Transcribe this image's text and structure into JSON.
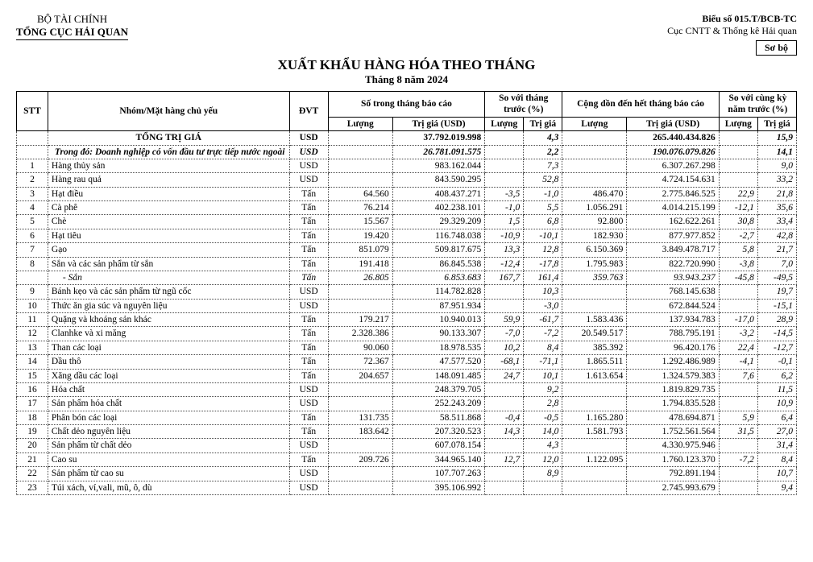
{
  "header": {
    "ministry": "BỘ TÀI CHÍNH",
    "agency": "TỔNG CỤC HẢI QUAN",
    "form_no": "Biểu số 015.T/BCB-TC",
    "dept": "Cục CNTT & Thống kê Hải quan",
    "sobo": "Sơ bộ"
  },
  "title": {
    "main": "XUẤT KHẨU HÀNG HÓA THEO THÁNG",
    "sub": "Tháng 8 năm 2024"
  },
  "columns": {
    "stt": "STT",
    "name": "Nhóm/Mặt hàng chủ yếu",
    "dvt": "ĐVT",
    "this_month": "Số trong tháng báo cáo",
    "vs_prev": "So với tháng trước (%)",
    "cum": "Cộng dồn đến hết tháng báo cáo",
    "vs_yoy": "So với cùng kỳ năm trước (%)",
    "qty": "Lượng",
    "val": "Trị giá (USD)",
    "valshort": "Trị giá"
  },
  "rows": [
    {
      "type": "total",
      "stt": "",
      "name": "TỔNG TRỊ GIÁ",
      "dvt": "USD",
      "q1": "",
      "v1": "37.792.019.998",
      "p1": "",
      "p2": "4,3",
      "q2": "",
      "v2": "265.440.434.826",
      "p3": "",
      "p4": "15,9"
    },
    {
      "type": "fdi",
      "stt": "",
      "name": "Trong đó: Doanh nghiệp có vốn đầu tư trực tiếp nước ngoài",
      "dvt": "USD",
      "q1": "",
      "v1": "26.781.091.575",
      "p1": "",
      "p2": "2,2",
      "q2": "",
      "v2": "190.076.079.826",
      "p3": "",
      "p4": "14,1"
    },
    {
      "type": "row",
      "stt": "1",
      "name": "Hàng thủy sản",
      "dvt": "USD",
      "q1": "",
      "v1": "983.162.044",
      "p1": "",
      "p2": "7,3",
      "q2": "",
      "v2": "6.307.267.298",
      "p3": "",
      "p4": "9,0"
    },
    {
      "type": "row",
      "stt": "2",
      "name": "Hàng rau quả",
      "dvt": "USD",
      "q1": "",
      "v1": "843.590.295",
      "p1": "",
      "p2": "52,8",
      "q2": "",
      "v2": "4.724.154.631",
      "p3": "",
      "p4": "33,2"
    },
    {
      "type": "row",
      "stt": "3",
      "name": "Hạt điều",
      "dvt": "Tấn",
      "q1": "64.560",
      "v1": "408.437.271",
      "p1": "-3,5",
      "p2": "-1,0",
      "q2": "486.470",
      "v2": "2.775.846.525",
      "p3": "22,9",
      "p4": "21,8"
    },
    {
      "type": "row",
      "stt": "4",
      "name": "Cà phê",
      "dvt": "Tấn",
      "q1": "76.214",
      "v1": "402.238.101",
      "p1": "-1,0",
      "p2": "5,5",
      "q2": "1.056.291",
      "v2": "4.014.215.199",
      "p3": "-12,1",
      "p4": "35,6"
    },
    {
      "type": "row",
      "stt": "5",
      "name": "Chè",
      "dvt": "Tấn",
      "q1": "15.567",
      "v1": "29.329.209",
      "p1": "1,5",
      "p2": "6,8",
      "q2": "92.800",
      "v2": "162.622.261",
      "p3": "30,8",
      "p4": "33,4"
    },
    {
      "type": "row",
      "stt": "6",
      "name": "Hạt tiêu",
      "dvt": "Tấn",
      "q1": "19.420",
      "v1": "116.748.038",
      "p1": "-10,9",
      "p2": "-10,1",
      "q2": "182.930",
      "v2": "877.977.852",
      "p3": "-2,7",
      "p4": "42,8"
    },
    {
      "type": "row",
      "stt": "7",
      "name": "Gạo",
      "dvt": "Tấn",
      "q1": "851.079",
      "v1": "509.817.675",
      "p1": "13,3",
      "p2": "12,8",
      "q2": "6.150.369",
      "v2": "3.849.478.717",
      "p3": "5,8",
      "p4": "21,7"
    },
    {
      "type": "row",
      "stt": "8",
      "name": "Sắn và các sản phẩm từ sắn",
      "dvt": "Tấn",
      "q1": "191.418",
      "v1": "86.845.538",
      "p1": "-12,4",
      "p2": "-17,8",
      "q2": "1.795.983",
      "v2": "822.720.990",
      "p3": "-3,8",
      "p4": "7,0"
    },
    {
      "type": "subitem",
      "stt": "",
      "name": "- Sắn",
      "dvt": "Tấn",
      "q1": "26.805",
      "v1": "6.853.683",
      "p1": "167,7",
      "p2": "161,4",
      "q2": "359.763",
      "v2": "93.943.237",
      "p3": "-45,8",
      "p4": "-49,5"
    },
    {
      "type": "row",
      "stt": "9",
      "name": "Bánh kẹo và các sản phẩm từ ngũ cốc",
      "dvt": "USD",
      "q1": "",
      "v1": "114.782.828",
      "p1": "",
      "p2": "10,3",
      "q2": "",
      "v2": "768.145.638",
      "p3": "",
      "p4": "19,7"
    },
    {
      "type": "row",
      "stt": "10",
      "name": "Thức ăn gia súc và nguyên liệu",
      "dvt": "USD",
      "q1": "",
      "v1": "87.951.934",
      "p1": "",
      "p2": "-3,0",
      "q2": "",
      "v2": "672.844.524",
      "p3": "",
      "p4": "-15,1"
    },
    {
      "type": "row",
      "stt": "11",
      "name": "Quặng và khoáng sản khác",
      "dvt": "Tấn",
      "q1": "179.217",
      "v1": "10.940.013",
      "p1": "59,9",
      "p2": "-61,7",
      "q2": "1.583.436",
      "v2": "137.934.783",
      "p3": "-17,0",
      "p4": "28,9"
    },
    {
      "type": "row",
      "stt": "12",
      "name": "Clanhke và xi măng",
      "dvt": "Tấn",
      "q1": "2.328.386",
      "v1": "90.133.307",
      "p1": "-7,0",
      "p2": "-7,2",
      "q2": "20.549.517",
      "v2": "788.795.191",
      "p3": "-3,2",
      "p4": "-14,5"
    },
    {
      "type": "row",
      "stt": "13",
      "name": "Than các loại",
      "dvt": "Tấn",
      "q1": "90.060",
      "v1": "18.978.535",
      "p1": "10,2",
      "p2": "8,4",
      "q2": "385.392",
      "v2": "96.420.176",
      "p3": "22,4",
      "p4": "-12,7"
    },
    {
      "type": "row",
      "stt": "14",
      "name": "Dầu thô",
      "dvt": "Tấn",
      "q1": "72.367",
      "v1": "47.577.520",
      "p1": "-68,1",
      "p2": "-71,1",
      "q2": "1.865.511",
      "v2": "1.292.486.989",
      "p3": "-4,1",
      "p4": "-0,1"
    },
    {
      "type": "row",
      "stt": "15",
      "name": "Xăng dầu các loại",
      "dvt": "Tấn",
      "q1": "204.657",
      "v1": "148.091.485",
      "p1": "24,7",
      "p2": "10,1",
      "q2": "1.613.654",
      "v2": "1.324.579.383",
      "p3": "7,6",
      "p4": "6,2"
    },
    {
      "type": "row",
      "stt": "16",
      "name": "Hóa chất",
      "dvt": "USD",
      "q1": "",
      "v1": "248.379.705",
      "p1": "",
      "p2": "9,2",
      "q2": "",
      "v2": "1.819.829.735",
      "p3": "",
      "p4": "11,5"
    },
    {
      "type": "row",
      "stt": "17",
      "name": "Sản phẩm hóa chất",
      "dvt": "USD",
      "q1": "",
      "v1": "252.243.209",
      "p1": "",
      "p2": "2,8",
      "q2": "",
      "v2": "1.794.835.528",
      "p3": "",
      "p4": "10,9"
    },
    {
      "type": "row",
      "stt": "18",
      "name": "Phân bón các loại",
      "dvt": "Tấn",
      "q1": "131.735",
      "v1": "58.511.868",
      "p1": "-0,4",
      "p2": "-0,5",
      "q2": "1.165.280",
      "v2": "478.694.871",
      "p3": "5,9",
      "p4": "6,4"
    },
    {
      "type": "row",
      "stt": "19",
      "name": "Chất dẻo nguyên liệu",
      "dvt": "Tấn",
      "q1": "183.642",
      "v1": "207.320.523",
      "p1": "14,3",
      "p2": "14,0",
      "q2": "1.581.793",
      "v2": "1.752.561.564",
      "p3": "31,5",
      "p4": "27,0"
    },
    {
      "type": "row",
      "stt": "20",
      "name": "Sản phẩm từ chất dẻo",
      "dvt": "USD",
      "q1": "",
      "v1": "607.078.154",
      "p1": "",
      "p2": "4,3",
      "q2": "",
      "v2": "4.330.975.946",
      "p3": "",
      "p4": "31,4"
    },
    {
      "type": "row",
      "stt": "21",
      "name": "Cao su",
      "dvt": "Tấn",
      "q1": "209.726",
      "v1": "344.965.140",
      "p1": "12,7",
      "p2": "12,0",
      "q2": "1.122.095",
      "v2": "1.760.123.370",
      "p3": "-7,2",
      "p4": "8,4"
    },
    {
      "type": "row",
      "stt": "22",
      "name": "Sản phẩm từ cao su",
      "dvt": "USD",
      "q1": "",
      "v1": "107.707.263",
      "p1": "",
      "p2": "8,9",
      "q2": "",
      "v2": "792.891.194",
      "p3": "",
      "p4": "10,7"
    },
    {
      "type": "row",
      "stt": "23",
      "name": "Túi xách, ví,vali, mũ, ô, dù",
      "dvt": "USD",
      "q1": "",
      "v1": "395.106.992",
      "p1": "",
      "p2": "",
      "q2": "",
      "v2": "2.745.993.679",
      "p3": "",
      "p4": "9,4"
    }
  ]
}
